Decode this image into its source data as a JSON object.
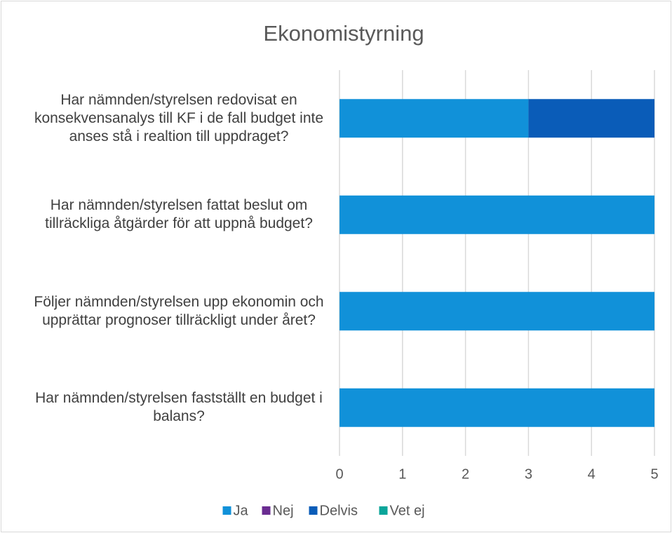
{
  "chart_data": {
    "type": "stacked_barh",
    "title": "Ekonomistyrning",
    "categories": [
      "Har nämnden/styrelsen redovisat en konsekvensanalys till KF i de fall budget inte anses stå i realtion till uppdraget?",
      "Har nämnden/styrelsen fattat beslut om tillräckliga åtgärder för att uppnå budget?",
      "Följer nämnden/styrelsen upp ekonomin och upprättar prognoser tillräckligt under året?",
      "Har nämnden/styrelsen fastställt en budget i balans?"
    ],
    "series": [
      {
        "name": "Ja",
        "color": "#1191d9",
        "values": [
          3,
          5,
          5,
          5
        ]
      },
      {
        "name": "Nej",
        "color": "#6a2c91",
        "values": [
          0,
          0,
          0,
          0
        ]
      },
      {
        "name": "Delvis",
        "color": "#0a5cb8",
        "values": [
          2,
          0,
          0,
          0
        ]
      },
      {
        "name": "Vet ej",
        "color": "#0aa59a",
        "values": [
          0,
          0,
          0,
          0
        ]
      }
    ],
    "xlim": [
      0,
      5
    ],
    "xticks": [
      0,
      1,
      2,
      3,
      4,
      5
    ],
    "grid": true,
    "legend": "bottom"
  }
}
